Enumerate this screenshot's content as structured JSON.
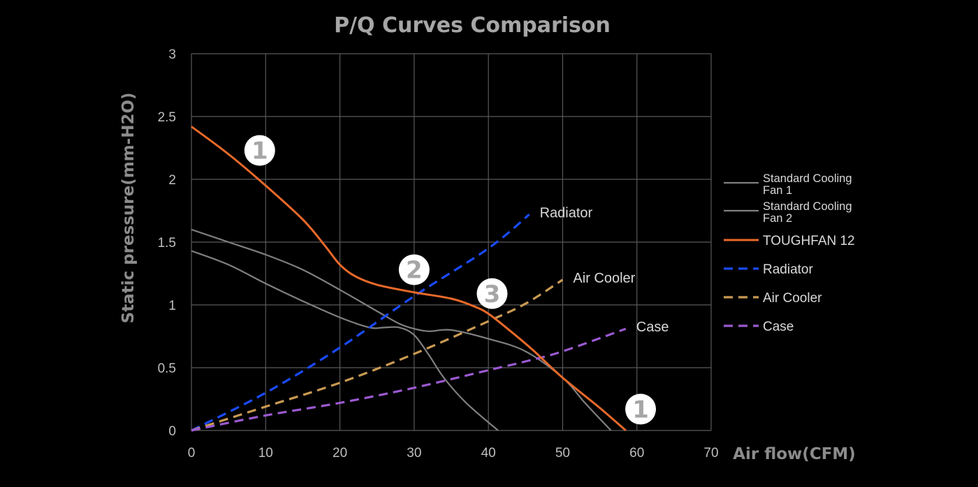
{
  "chart_data": {
    "type": "line",
    "title": "P/Q Curves Comparison",
    "xlabel": "Air flow(CFM)",
    "ylabel": "Static pressure(mm-H2O)",
    "xlim": [
      0,
      70
    ],
    "ylim": [
      0,
      3
    ],
    "xticks": [
      0,
      10,
      20,
      30,
      40,
      50,
      60,
      70
    ],
    "yticks": [
      0,
      0.5,
      1,
      1.5,
      2,
      2.5,
      3
    ],
    "xtick_labels": [
      "0",
      "10",
      "20",
      "30",
      "40",
      "50",
      "60",
      "70"
    ],
    "ytick_labels": [
      "0",
      "0.5",
      "1",
      "1.5",
      "2",
      "2.5",
      "3"
    ],
    "grid": true,
    "legend_position": "right",
    "series": [
      {
        "name": "Standard Cooling Fan 1",
        "legend_lines": [
          "Standard Cooling",
          "Fan 1"
        ],
        "color": "#7f7f7f",
        "dash": "solid",
        "points": [
          [
            0,
            1.6
          ],
          [
            5,
            1.5
          ],
          [
            10,
            1.4
          ],
          [
            15,
            1.28
          ],
          [
            20,
            1.12
          ],
          [
            25,
            0.95
          ],
          [
            28,
            0.85
          ],
          [
            30,
            0.81
          ],
          [
            32,
            0.79
          ],
          [
            35,
            0.8
          ],
          [
            40,
            0.73
          ],
          [
            45,
            0.63
          ],
          [
            50,
            0.42
          ],
          [
            53,
            0.22
          ],
          [
            56.5,
            0
          ]
        ]
      },
      {
        "name": "Standard Cooling Fan 2",
        "legend_lines": [
          "Standard Cooling",
          "Fan 2"
        ],
        "color": "#7f7f7f",
        "dash": "solid",
        "points": [
          [
            0,
            1.43
          ],
          [
            5,
            1.32
          ],
          [
            10,
            1.17
          ],
          [
            15,
            1.03
          ],
          [
            20,
            0.9
          ],
          [
            24,
            0.82
          ],
          [
            26,
            0.82
          ],
          [
            28,
            0.82
          ],
          [
            30,
            0.76
          ],
          [
            32,
            0.6
          ],
          [
            34,
            0.42
          ],
          [
            37,
            0.22
          ],
          [
            41.3,
            0
          ]
        ]
      },
      {
        "name": "TOUGHFAN 12",
        "legend_lines": [
          "TOUGHFAN 12"
        ],
        "color": "#e8692a",
        "dash": "solid",
        "points": [
          [
            0,
            2.42
          ],
          [
            5,
            2.2
          ],
          [
            10,
            1.95
          ],
          [
            15,
            1.68
          ],
          [
            18,
            1.47
          ],
          [
            20,
            1.32
          ],
          [
            22,
            1.23
          ],
          [
            25,
            1.16
          ],
          [
            30,
            1.1
          ],
          [
            35,
            1.05
          ],
          [
            38,
            0.99
          ],
          [
            40,
            0.93
          ],
          [
            43,
            0.79
          ],
          [
            46,
            0.64
          ],
          [
            50,
            0.42
          ],
          [
            55,
            0.18
          ],
          [
            58.5,
            0
          ]
        ]
      },
      {
        "name": "Radiator",
        "legend_lines": [
          "Radiator"
        ],
        "annotation": "Radiator",
        "color": "#1a4bff",
        "dash": "dashed",
        "points": [
          [
            0,
            0
          ],
          [
            10,
            0.3
          ],
          [
            20,
            0.66
          ],
          [
            30,
            1.07
          ],
          [
            40,
            1.45
          ],
          [
            45.5,
            1.72
          ]
        ]
      },
      {
        "name": "Air Cooler",
        "legend_lines": [
          "Air Cooler"
        ],
        "annotation": "Air Cooler",
        "color": "#c99a52",
        "dash": "dashed",
        "points": [
          [
            0,
            0
          ],
          [
            10,
            0.19
          ],
          [
            20,
            0.38
          ],
          [
            30,
            0.61
          ],
          [
            40,
            0.87
          ],
          [
            45,
            1.01
          ],
          [
            50,
            1.2
          ]
        ]
      },
      {
        "name": "Case",
        "legend_lines": [
          "Case"
        ],
        "annotation": "Case",
        "color": "#9b59d0",
        "dash": "dashed",
        "points": [
          [
            0,
            0
          ],
          [
            10,
            0.12
          ],
          [
            20,
            0.22
          ],
          [
            30,
            0.34
          ],
          [
            40,
            0.48
          ],
          [
            45,
            0.55
          ],
          [
            50,
            0.63
          ],
          [
            58.5,
            0.81
          ]
        ]
      }
    ],
    "markers": [
      {
        "label": "1",
        "x": 9.2,
        "y": 2.23
      },
      {
        "label": "2",
        "x": 30,
        "y": 1.28
      },
      {
        "label": "3",
        "x": 40.5,
        "y": 1.09
      },
      {
        "label": "1",
        "x": 60.5,
        "y": 0.17
      }
    ]
  }
}
